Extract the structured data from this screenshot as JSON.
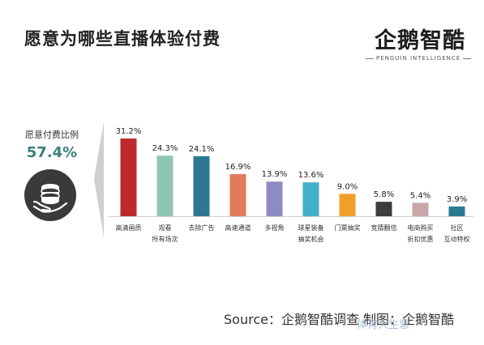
{
  "title": "愿意为哪些直播体验付费",
  "logo": {
    "name": "企鹅智酷",
    "subtitle": "PENGUIN INTELLIGENCE"
  },
  "summary": {
    "label": "愿意付费比例",
    "value": "57.4%"
  },
  "source_text": "Source：企鹅智酷调查 制图：企鹅智酷",
  "watermark": "体育大生意",
  "colors": {
    "bars": [
      "#c0282e",
      "#8cc6b1",
      "#2d7794",
      "#e07b5b",
      "#8d8ac5",
      "#43b0c9",
      "#f0a029",
      "#3c3c3c",
      "#c9a6a7",
      "#2a7b93"
    ],
    "summary_value": "#3c7f78"
  },
  "chart_data": {
    "type": "bar",
    "categories": [
      [
        "高清画质"
      ],
      [
        "观看",
        "所有场次"
      ],
      [
        "去除广告"
      ],
      [
        "高速通道"
      ],
      [
        "多视角"
      ],
      [
        "球星装备",
        "抽奖机会"
      ],
      [
        "门票抽奖"
      ],
      [
        "竞猜翻倍"
      ],
      [
        "电商购买",
        "折扣优惠"
      ],
      [
        "社区",
        "互动特权"
      ]
    ],
    "values": [
      31.2,
      24.3,
      24.1,
      16.9,
      13.9,
      13.6,
      9.0,
      5.8,
      5.4,
      3.9
    ],
    "value_labels": [
      "31.2%",
      "24.3%",
      "24.1%",
      "16.9%",
      "13.9%",
      "13.6%",
      "9.0%",
      "5.8%",
      "5.4%",
      "3.9%"
    ],
    "ylim": [
      0,
      31.2
    ]
  }
}
